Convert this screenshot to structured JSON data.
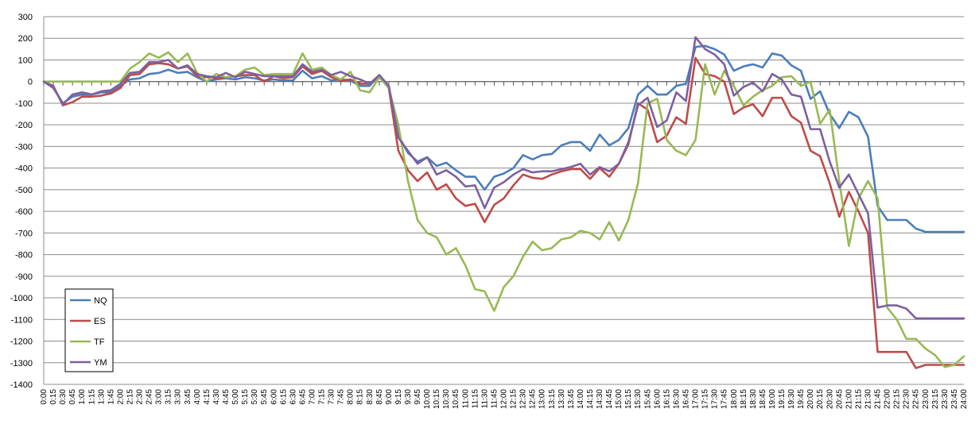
{
  "chart_data": {
    "type": "line",
    "title": "",
    "xlabel": "",
    "ylabel": "",
    "ylim": [
      -1400,
      300
    ],
    "yticks": [
      300,
      200,
      100,
      0,
      -100,
      -200,
      -300,
      -400,
      -500,
      -600,
      -700,
      -800,
      -900,
      -1000,
      -1100,
      -1200,
      -1300,
      -1400
    ],
    "grid": true,
    "legend_position": "bottom-left",
    "x": [
      "0:00",
      "0:15",
      "0:30",
      "0:45",
      "1:00",
      "1:15",
      "1:30",
      "1:45",
      "2:00",
      "2:15",
      "2:30",
      "2:45",
      "3:00",
      "3:15",
      "3:30",
      "3:45",
      "4:00",
      "4:15",
      "4:30",
      "4:45",
      "5:00",
      "5:15",
      "5:30",
      "5:45",
      "6:00",
      "6:15",
      "6:30",
      "6:45",
      "7:00",
      "7:15",
      "7:30",
      "7:45",
      "8:00",
      "8:15",
      "8:30",
      "8:45",
      "9:00",
      "9:15",
      "9:30",
      "9:45",
      "10:00",
      "10:15",
      "10:30",
      "10:45",
      "11:00",
      "11:15",
      "11:30",
      "11:45",
      "12:00",
      "12:15",
      "12:30",
      "12:45",
      "13:00",
      "13:15",
      "13:30",
      "13:45",
      "14:00",
      "14:15",
      "14:30",
      "14:45",
      "15:00",
      "15:15",
      "15:30",
      "15:45",
      "16:00",
      "16:15",
      "16:30",
      "16:45",
      "17:00",
      "17:15",
      "17:30",
      "17:45",
      "18:00",
      "18:15",
      "18:30",
      "18:45",
      "19:00",
      "19:15",
      "19:30",
      "19:45",
      "20:00",
      "20:15",
      "20:30",
      "20:45",
      "21:00",
      "21:15",
      "21:30",
      "21:45",
      "22:00",
      "22:15",
      "22:30",
      "22:45",
      "23:00",
      "23:15",
      "23:30",
      "23:45",
      "24:00"
    ],
    "series": [
      {
        "name": "NQ",
        "color": "#4a7ebb",
        "values": [
          0,
          -30,
          -100,
          -70,
          -60,
          -60,
          -50,
          -50,
          -20,
          10,
          15,
          35,
          40,
          55,
          40,
          45,
          20,
          0,
          10,
          15,
          10,
          20,
          15,
          5,
          10,
          5,
          5,
          50,
          15,
          25,
          5,
          10,
          5,
          -20,
          -20,
          30,
          -20,
          -250,
          -330,
          -370,
          -350,
          -390,
          -375,
          -410,
          -440,
          -440,
          -500,
          -440,
          -425,
          -400,
          -340,
          -360,
          -340,
          -335,
          -295,
          -280,
          -280,
          -320,
          -245,
          -295,
          -270,
          -215,
          -60,
          -20,
          -60,
          -60,
          -20,
          -10,
          160,
          165,
          150,
          125,
          50,
          70,
          80,
          65,
          130,
          120,
          75,
          50,
          -80,
          -45,
          -150,
          -215,
          -140,
          -165,
          -255,
          -575,
          -640,
          -640,
          -640,
          -680,
          -695,
          -695,
          -695,
          -695,
          -695
        ]
      },
      {
        "name": "ES",
        "color": "#be4b48",
        "values": [
          0,
          -20,
          -110,
          -95,
          -70,
          -70,
          -65,
          -55,
          -30,
          30,
          35,
          80,
          85,
          80,
          60,
          70,
          25,
          20,
          15,
          20,
          25,
          30,
          30,
          0,
          25,
          15,
          20,
          70,
          35,
          50,
          20,
          5,
          10,
          -10,
          -10,
          25,
          -30,
          -320,
          -410,
          -460,
          -420,
          -500,
          -475,
          -540,
          -575,
          -565,
          -650,
          -570,
          -540,
          -480,
          -430,
          -445,
          -450,
          -430,
          -415,
          -405,
          -405,
          -450,
          -400,
          -440,
          -380,
          -290,
          -100,
          -130,
          -280,
          -250,
          -165,
          -195,
          110,
          35,
          25,
          0,
          -150,
          -120,
          -105,
          -160,
          -75,
          -75,
          -160,
          -190,
          -320,
          -345,
          -470,
          -625,
          -510,
          -600,
          -700,
          -1250,
          -1250,
          -1250,
          -1250,
          -1325,
          -1310,
          -1310,
          -1310,
          -1310,
          -1310
        ]
      },
      {
        "name": "TF",
        "color": "#98b954",
        "values": [
          0,
          0,
          0,
          0,
          0,
          0,
          0,
          0,
          0,
          60,
          90,
          130,
          110,
          135,
          90,
          130,
          40,
          0,
          35,
          20,
          25,
          55,
          65,
          30,
          35,
          35,
          35,
          130,
          55,
          65,
          30,
          10,
          45,
          -40,
          -50,
          20,
          -30,
          -200,
          -460,
          -640,
          -700,
          -720,
          -800,
          -770,
          -850,
          -960,
          -970,
          -1060,
          -950,
          -900,
          -810,
          -740,
          -780,
          -770,
          -730,
          -720,
          -690,
          -700,
          -730,
          -650,
          -735,
          -640,
          -470,
          -100,
          -80,
          -270,
          -320,
          -340,
          -270,
          80,
          -60,
          50,
          -20,
          -110,
          -70,
          -40,
          -20,
          20,
          25,
          -20,
          0,
          -195,
          -130,
          -460,
          -760,
          -540,
          -460,
          -540,
          -1045,
          -1100,
          -1190,
          -1190,
          -1235,
          -1265,
          -1320,
          -1310,
          -1270
        ]
      },
      {
        "name": "YM",
        "color": "#7d60a0",
        "values": [
          0,
          -25,
          -105,
          -60,
          -50,
          -60,
          -45,
          -40,
          -10,
          40,
          45,
          90,
          90,
          100,
          60,
          75,
          35,
          25,
          20,
          40,
          20,
          45,
          35,
          25,
          25,
          25,
          25,
          80,
          45,
          55,
          30,
          45,
          25,
          10,
          -10,
          30,
          -20,
          -260,
          -320,
          -380,
          -350,
          -430,
          -410,
          -440,
          -485,
          -480,
          -585,
          -490,
          -465,
          -430,
          -405,
          -420,
          -415,
          -415,
          -405,
          -395,
          -380,
          -430,
          -395,
          -415,
          -380,
          -280,
          -110,
          -75,
          -210,
          -180,
          -50,
          -90,
          205,
          150,
          125,
          80,
          -65,
          -25,
          -5,
          -45,
          35,
          10,
          -60,
          -70,
          -220,
          -220,
          -370,
          -490,
          -430,
          -520,
          -610,
          -1045,
          -1035,
          -1035,
          -1050,
          -1095,
          -1095,
          -1095,
          -1095,
          -1095,
          -1095
        ]
      }
    ]
  }
}
